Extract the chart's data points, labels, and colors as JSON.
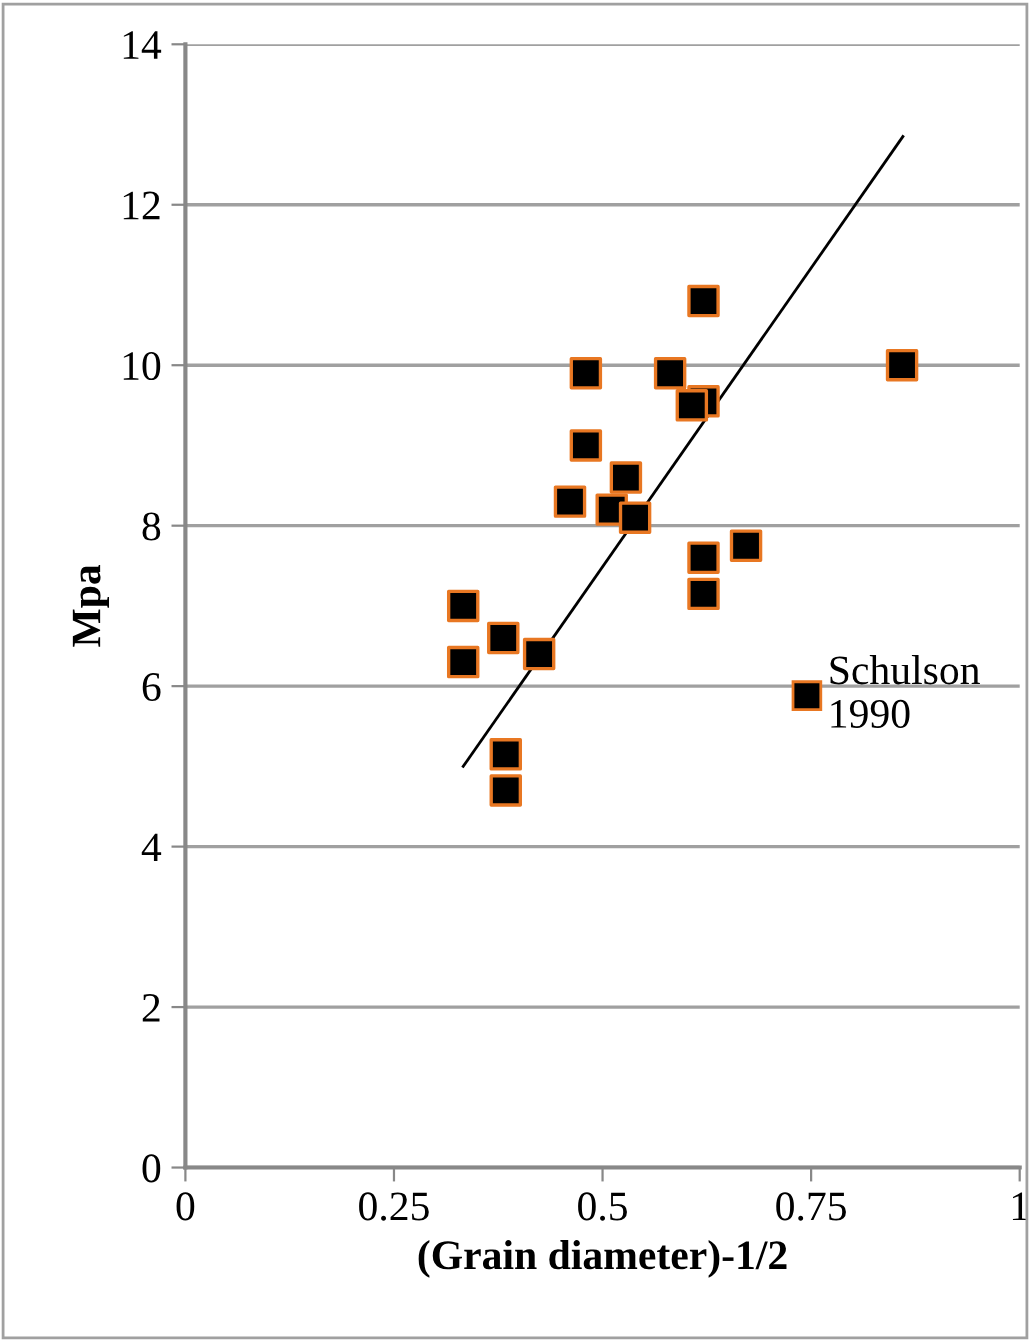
{
  "chart_data": {
    "type": "scatter",
    "xlabel": "(Grain diameter)-1/2",
    "ylabel": "Mpa",
    "xlim": [
      0,
      1
    ],
    "xticks": [
      0,
      0.25,
      0.5,
      0.75,
      1
    ],
    "ylim": [
      0,
      14
    ],
    "yticks": [
      0,
      2,
      4,
      6,
      8,
      10,
      12,
      14
    ],
    "grid": "y",
    "legend": "right",
    "series": [
      {
        "name": "Schulson 1990",
        "color": "#000000",
        "marker": "square",
        "x": [
          0.621,
          0.48,
          0.581,
          0.621,
          0.607,
          0.859,
          0.48,
          0.528,
          0.461,
          0.511,
          0.539,
          0.621,
          0.672,
          0.621,
          0.333,
          0.381,
          0.424,
          0.333,
          0.384,
          0.384
        ],
        "values": [
          10.8,
          9.9,
          9.9,
          9.55,
          9.5,
          10.0,
          9.0,
          8.6,
          8.3,
          8.2,
          8.1,
          7.6,
          7.75,
          7.15,
          7.0,
          6.6,
          6.4,
          6.3,
          5.15,
          4.7
        ]
      },
      {
        "type": "line",
        "color": "#000000",
        "x": [
          0.333,
          0.86
        ],
        "values": [
          5.0,
          12.85
        ]
      }
    ]
  }
}
